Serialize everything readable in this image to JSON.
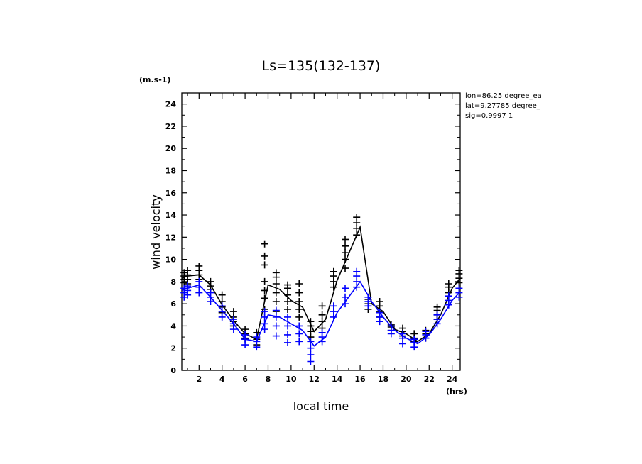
{
  "chart_data": {
    "type": "line",
    "title": "Ls=135(132-137)",
    "xlabel": "local time",
    "ylabel": "wind velocity",
    "x_unit": "(hrs)",
    "y_unit": "(m.s-1)",
    "xlim": [
      0.5,
      24.7
    ],
    "ylim": [
      0,
      25
    ],
    "xticks": [
      2,
      4,
      6,
      8,
      10,
      12,
      14,
      16,
      18,
      20,
      22,
      24
    ],
    "yticks": [
      0,
      2,
      4,
      6,
      8,
      10,
      12,
      14,
      16,
      18,
      20,
      22,
      24
    ],
    "info_lines": [
      "lon=86.25 degree_ea",
      "lat=9.27785 degree_",
      "sig=0.9997 1"
    ],
    "x": [
      0.5,
      1,
      2,
      3,
      4,
      5,
      6,
      7,
      8,
      9,
      10,
      11,
      12,
      13,
      14,
      15,
      16,
      17,
      18,
      19,
      20,
      21,
      22,
      23,
      24,
      24.7
    ],
    "series": [
      {
        "color": "#000000",
        "values": [
          8.3,
          8.5,
          8.6,
          7.7,
          5.9,
          4.5,
          3.3,
          2.8,
          7.7,
          7.3,
          6.3,
          5.7,
          3.5,
          4.6,
          8.1,
          10.5,
          12.9,
          6.0,
          5.3,
          3.7,
          3.3,
          2.6,
          3.3,
          5.0,
          7.4,
          8.3
        ],
        "scatter": [
          [
            0.7,
            [
              7.9,
              8.2,
              8.5,
              8.8
            ]
          ],
          [
            1,
            [
              7.8,
              8.2,
              8.6,
              9.0
            ]
          ],
          [
            2,
            [
              8.2,
              8.6,
              9.0,
              9.4
            ]
          ],
          [
            3,
            [
              7.3,
              7.6,
              8.0
            ]
          ],
          [
            4,
            [
              5.2,
              5.7,
              6.2,
              6.8
            ]
          ],
          [
            5,
            [
              4.0,
              4.4,
              4.8,
              5.3
            ]
          ],
          [
            6,
            [
              2.9,
              3.3,
              3.7
            ]
          ],
          [
            7,
            [
              2.3,
              2.8,
              3.4
            ]
          ],
          [
            7.7,
            [
              5.5,
              6.5,
              7.2,
              8.0,
              9.5,
              10.3,
              11.4
            ]
          ],
          [
            8.7,
            [
              5.3,
              6.2,
              7.0,
              7.8,
              8.4,
              8.8
            ]
          ],
          [
            9.7,
            [
              5.5,
              6.2,
              6.8,
              7.4,
              7.7
            ]
          ],
          [
            10.7,
            [
              4.8,
              5.5,
              6.2,
              7.0,
              7.8
            ]
          ],
          [
            11.7,
            [
              3.0,
              3.5,
              4.0,
              4.4
            ]
          ],
          [
            12.7,
            [
              3.8,
              4.4,
              5.0,
              5.8
            ]
          ],
          [
            13.7,
            [
              7.5,
              8.0,
              8.5,
              8.9
            ]
          ],
          [
            14.7,
            [
              9.2,
              10.0,
              10.6,
              11.2,
              11.8
            ]
          ],
          [
            15.7,
            [
              12.2,
              12.8,
              13.3,
              13.8
            ]
          ],
          [
            16.7,
            [
              5.5,
              6.0,
              6.4
            ]
          ],
          [
            17.7,
            [
              4.8,
              5.3,
              5.8,
              6.2
            ]
          ],
          [
            18.7,
            [
              3.6,
              3.9,
              4.1
            ]
          ],
          [
            19.7,
            [
              3.1,
              3.5,
              3.8
            ]
          ],
          [
            20.7,
            [
              2.6,
              2.9,
              3.3
            ]
          ],
          [
            21.7,
            [
              2.9,
              3.3,
              3.6
            ]
          ],
          [
            22.7,
            [
              4.6,
              5.0,
              5.4,
              5.7
            ]
          ],
          [
            23.7,
            [
              7.0,
              7.5,
              7.8
            ]
          ],
          [
            24.6,
            [
              7.9,
              8.3,
              8.7,
              9.0
            ]
          ]
        ]
      },
      {
        "color": "#0000ff",
        "values": [
          7.2,
          7.4,
          7.7,
          6.6,
          5.4,
          4.2,
          2.8,
          2.6,
          5.0,
          4.8,
          4.2,
          3.6,
          2.2,
          3.0,
          5.2,
          6.6,
          8.0,
          6.2,
          4.8,
          3.6,
          2.9,
          2.4,
          3.2,
          4.6,
          6.3,
          7.1
        ],
        "scatter": [
          [
            0.7,
            [
              6.6,
              7.0,
              7.4
            ]
          ],
          [
            1,
            [
              6.8,
              7.2,
              7.6
            ]
          ],
          [
            2,
            [
              7.0,
              7.5,
              8.0
            ]
          ],
          [
            3,
            [
              6.2,
              6.6,
              7.0
            ]
          ],
          [
            4,
            [
              4.8,
              5.3,
              5.8
            ]
          ],
          [
            5,
            [
              3.7,
              4.2,
              4.6
            ]
          ],
          [
            6,
            [
              2.3,
              2.8,
              3.2
            ]
          ],
          [
            7,
            [
              2.1,
              2.6,
              3.0
            ]
          ],
          [
            7.7,
            [
              3.7,
              4.2,
              4.8,
              5.3
            ]
          ],
          [
            8.7,
            [
              3.1,
              4.0,
              4.8,
              5.4
            ]
          ],
          [
            9.7,
            [
              2.5,
              3.2,
              4.0,
              4.8
            ]
          ],
          [
            10.7,
            [
              2.6,
              3.3,
              4.0
            ]
          ],
          [
            11.7,
            [
              0.8,
              1.4,
              2.0,
              2.6
            ]
          ],
          [
            12.7,
            [
              2.6,
              3.0,
              3.4
            ]
          ],
          [
            13.7,
            [
              4.8,
              5.3,
              5.8
            ]
          ],
          [
            14.7,
            [
              6.0,
              6.6,
              7.4
            ]
          ],
          [
            15.7,
            [
              7.5,
              8.0,
              8.5,
              8.9
            ]
          ],
          [
            16.7,
            [
              5.8,
              6.2,
              6.6
            ]
          ],
          [
            17.7,
            [
              4.4,
              4.8,
              5.2
            ]
          ],
          [
            18.7,
            [
              3.3,
              3.6,
              4.0
            ]
          ],
          [
            19.7,
            [
              2.4,
              2.9,
              3.3
            ]
          ],
          [
            20.7,
            [
              2.1,
              2.5,
              2.8
            ]
          ],
          [
            21.7,
            [
              2.9,
              3.2,
              3.5
            ]
          ],
          [
            22.7,
            [
              4.2,
              4.6,
              5.0
            ]
          ],
          [
            23.7,
            [
              5.9,
              6.3,
              6.7
            ]
          ],
          [
            24.6,
            [
              6.6,
              7.0,
              7.4
            ]
          ]
        ]
      }
    ]
  }
}
